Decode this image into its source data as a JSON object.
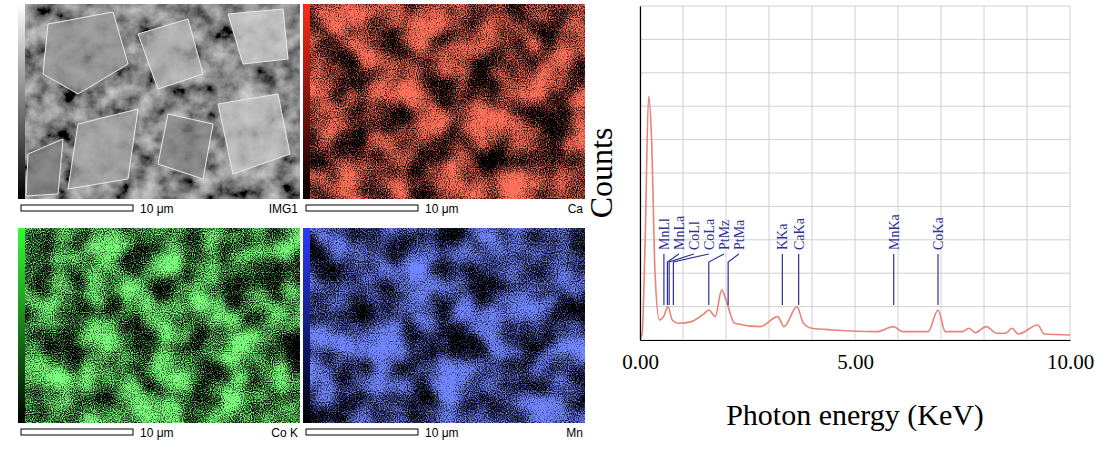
{
  "panels": [
    {
      "name": "IMG1",
      "scale_bar": "10 μm",
      "color": "#ffffff"
    },
    {
      "name": "Ca",
      "scale_bar": "10 μm",
      "color": "#ff2a1a"
    },
    {
      "name": "Co K",
      "scale_bar": "10 μm",
      "color": "#33ff33"
    },
    {
      "name": "Mn",
      "scale_bar": "10 μm",
      "color": "#2a3cff"
    }
  ],
  "chart_data": {
    "type": "line",
    "x_label": "Photon energy (KeV)",
    "y_label": "Counts",
    "x": [
      0.0,
      0.05,
      0.12,
      0.2,
      0.27,
      0.35,
      0.45,
      0.55,
      0.65,
      0.75,
      0.9,
      1.2,
      1.5,
      1.6,
      1.75,
      1.9,
      2.0,
      2.2,
      2.8,
      3.2,
      3.35,
      3.65,
      3.8,
      4.0,
      4.5,
      5.5,
      5.9,
      6.1,
      6.7,
      6.93,
      7.1,
      7.5,
      7.65,
      7.8,
      8.05,
      8.3,
      8.5,
      8.65,
      8.8,
      9.25,
      9.4,
      10.0
    ],
    "values": [
      0,
      2,
      30,
      73,
      60,
      20,
      6,
      7,
      10,
      6,
      5,
      5.5,
      8,
      9,
      7,
      15,
      12,
      5,
      4,
      7,
      4,
      10,
      5,
      3.5,
      3,
      2.5,
      4,
      2.5,
      2.5,
      9,
      2.5,
      2.5,
      3.5,
      2.2,
      4,
      2,
      2,
      3.5,
      1.8,
      4.5,
      1.8,
      1.5
    ],
    "color": "#e8837a",
    "xlim": [
      0,
      10
    ],
    "xticks": [
      {
        "value": 0,
        "label": "0.00"
      },
      {
        "value": 1,
        "label": null
      },
      {
        "value": 2,
        "label": null
      },
      {
        "value": 3,
        "label": null
      },
      {
        "value": 4,
        "label": null
      },
      {
        "value": 5,
        "label": "5.00"
      },
      {
        "value": 6,
        "label": null
      },
      {
        "value": 7,
        "label": null
      },
      {
        "value": 8,
        "label": null
      },
      {
        "value": 9,
        "label": null
      },
      {
        "value": 10,
        "label": "10.00"
      }
    ],
    "ylim": [
      0,
      100
    ],
    "yticks": [
      0,
      10,
      20,
      30,
      40,
      50,
      60,
      70,
      80,
      90,
      100
    ],
    "grid": true,
    "tick_labels": "x",
    "annotations": [
      {
        "label": "MnLl",
        "x": 0.556
      },
      {
        "label": "MnLa",
        "x": 0.637
      },
      {
        "label": "CoLl",
        "x": 0.678
      },
      {
        "label": "CoLa",
        "x": 0.776
      },
      {
        "label": "PtMz",
        "x": 1.6
      },
      {
        "label": "PtMa",
        "x": 2.05
      },
      {
        "label": "KKa",
        "x": 3.31
      },
      {
        "label": "CaKa",
        "x": 3.69
      },
      {
        "label": "MnKa",
        "x": 5.9
      },
      {
        "label": "CoKa",
        "x": 6.93
      }
    ]
  }
}
